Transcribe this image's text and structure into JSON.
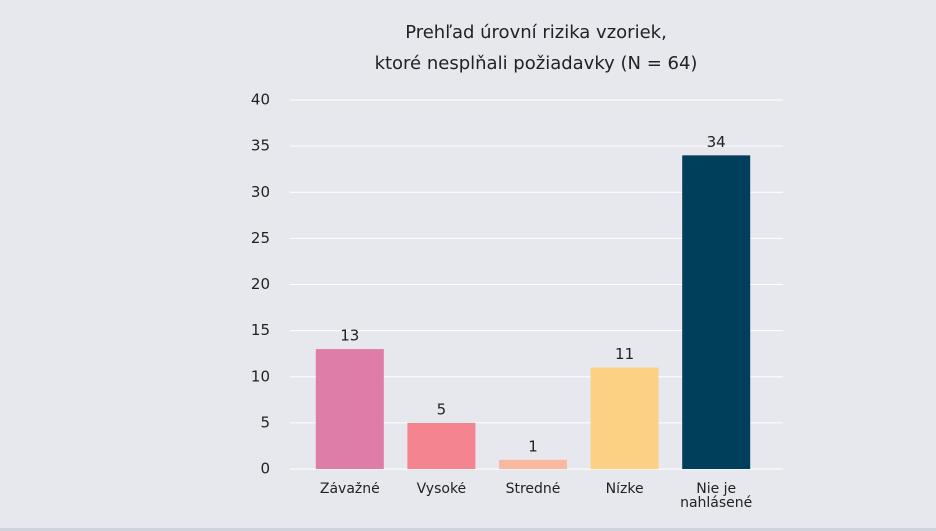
{
  "chart_data": {
    "type": "bar",
    "title": [
      "Prehľad úrovní rizika vzoriek,",
      "ktoré nesplňali požiadavky (N = 64)"
    ],
    "categories": [
      "Závažné",
      "Vysoké",
      "Stredné",
      "Nízke",
      "Nie je nahlásené"
    ],
    "values": [
      13,
      5,
      1,
      11,
      34
    ],
    "colors": [
      "#de7ea6",
      "#f4848f",
      "#f8b9a0",
      "#fdd184",
      "#003f5c"
    ],
    "ylim": [
      0,
      40
    ],
    "yticks": [
      0,
      5,
      10,
      15,
      20,
      25,
      30,
      35,
      40
    ],
    "grid": true
  }
}
